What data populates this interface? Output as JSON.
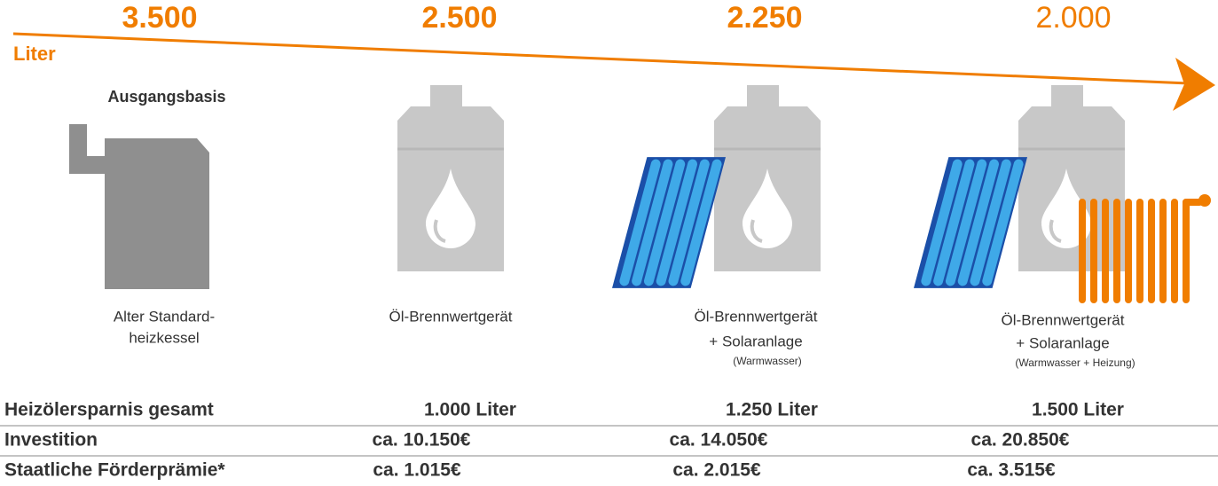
{
  "arrow_label": "Liter",
  "options": [
    {
      "amount": "3.500",
      "tag": "Ausgangsbasis",
      "caption": [
        "Alter Standard-",
        "heizkessel"
      ]
    },
    {
      "amount": "2.500",
      "caption": [
        "Öl-Brennwertgerät"
      ]
    },
    {
      "amount": "2.250",
      "caption": [
        "Öl-Brennwertgerät",
        "+ Solaranlage"
      ],
      "note": "(Warmwasser)"
    },
    {
      "amount": "2.000",
      "caption": [
        "Öl-Brennwertgerät",
        "+ Solaranlage"
      ],
      "note": "(Warmwasser + Heizung)"
    }
  ],
  "table": {
    "rows": [
      [
        "Heizölersparnis gesamt",
        "1.000 Liter",
        "1.250 Liter",
        "1.500 Liter"
      ],
      [
        "Investition",
        "ca. 10.150€",
        "ca. 14.050€",
        "ca. 20.850€"
      ],
      [
        "Staatliche Förderprämie*",
        "ca. 1.015€",
        "ca. 2.015€",
        "ca. 3.515€"
      ]
    ]
  }
}
